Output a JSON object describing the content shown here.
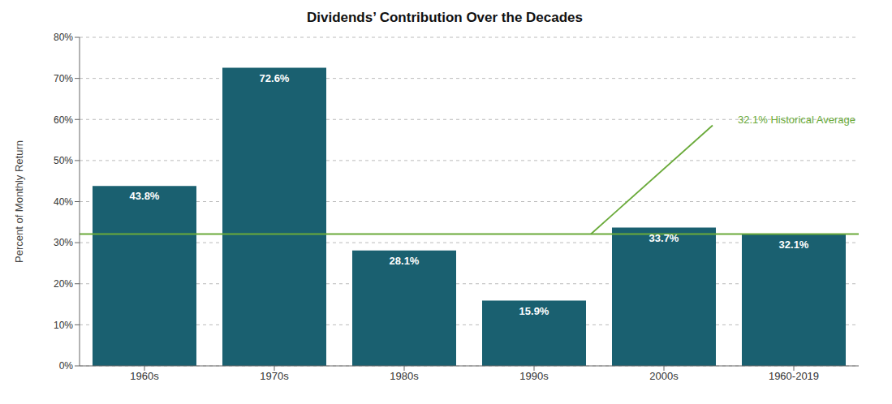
{
  "chart_data": {
    "type": "bar",
    "title": "Dividends’ Contribution Over the Decades",
    "categories": [
      "1960s",
      "1970s",
      "1980s",
      "1990s",
      "2000s",
      "1960-2019"
    ],
    "values": [
      43.8,
      72.6,
      28.1,
      15.9,
      33.7,
      32.1
    ],
    "value_labels": [
      "43.8%",
      "72.6%",
      "28.1%",
      "15.9%",
      "33.7%",
      "32.1%"
    ],
    "data_labels": true,
    "color": "#1a6070",
    "ylabel": "Percent of Monthly Return",
    "ylim": [
      0,
      80
    ],
    "yticks": [
      {
        "value": 0,
        "label": "0%"
      },
      {
        "value": 10,
        "label": "10%"
      },
      {
        "value": 20,
        "label": "20%"
      },
      {
        "value": 30,
        "label": "30%"
      },
      {
        "value": 40,
        "label": "40%"
      },
      {
        "value": 50,
        "label": "50%"
      },
      {
        "value": 60,
        "label": "60%"
      },
      {
        "value": 70,
        "label": "70%"
      },
      {
        "value": 80,
        "label": "80%"
      }
    ],
    "grid": true,
    "average_line": {
      "value": 32.1,
      "label": "32.1% Historical Average",
      "color": "#6aaa3a"
    }
  }
}
